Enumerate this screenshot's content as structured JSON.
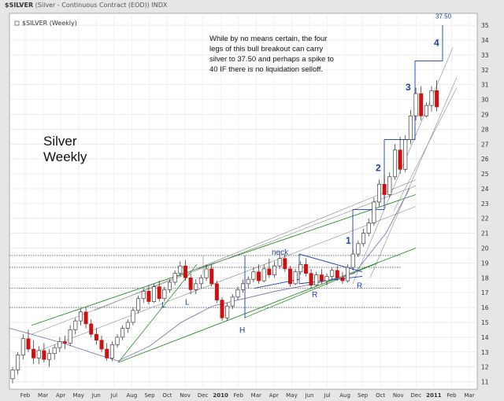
{
  "header": {
    "symbol": "$SILVER",
    "description": "(Silver - Continuous Contract (EOD))",
    "exchange": "INDX"
  },
  "legend": {
    "label": "$SILVER (Weekly)"
  },
  "chart_title": {
    "line1": "Silver",
    "line2": "Weekly"
  },
  "annotation_note": [
    "While by no means certain, the four",
    "legs of this bull breakout can carry",
    "silver to 37.50 and perhaps a spike to",
    "40 IF there is no liquidation selloff."
  ],
  "colors": {
    "up_candle": "#ffffff",
    "down_candle": "#cc1111",
    "green_channel": "#2a8a2a",
    "blue_annotation": "#1a3fb0",
    "grey_lines": "#888888"
  },
  "chart_data": {
    "type": "candlestick",
    "y_axis": {
      "ticks": [
        11,
        12,
        13,
        14,
        15,
        16,
        17,
        18,
        19,
        20,
        21,
        22,
        23,
        24,
        25,
        26,
        27,
        28,
        29,
        30,
        31,
        32,
        33,
        34,
        35
      ],
      "range": [
        10.5,
        35.8
      ],
      "position": "right"
    },
    "x_axis": {
      "labels": [
        "Feb",
        "Mar",
        "Apr",
        "May",
        "Jun",
        "Jul",
        "Aug",
        "Sep",
        "Oct",
        "Nov",
        "Dec",
        "2010",
        "Feb",
        "Mar",
        "Apr",
        "May",
        "Jun",
        "Jul",
        "Aug",
        "Sep",
        "Oct",
        "Nov",
        "Dec",
        "2011",
        "Feb",
        "Mar"
      ],
      "bold_labels": [
        "2010",
        "2011"
      ]
    },
    "annotations": {
      "neck": "neck",
      "L_markers": [
        "L",
        "L"
      ],
      "H_marker": "H",
      "R_markers": [
        "R",
        "R"
      ],
      "legs": [
        "1",
        "2",
        "3",
        "4"
      ],
      "target": "37.50"
    },
    "horizontal_levels": [
      19.5,
      18.7,
      17.3,
      16.0
    ],
    "candles": [
      {
        "o": 11.2,
        "h": 12.0,
        "l": 10.9,
        "c": 11.8
      },
      {
        "o": 11.8,
        "h": 13.0,
        "l": 11.5,
        "c": 12.8
      },
      {
        "o": 12.8,
        "h": 14.2,
        "l": 12.5,
        "c": 13.9
      },
      {
        "o": 13.9,
        "h": 14.5,
        "l": 13.0,
        "c": 13.2
      },
      {
        "o": 13.2,
        "h": 13.8,
        "l": 12.2,
        "c": 12.6
      },
      {
        "o": 12.6,
        "h": 13.4,
        "l": 12.2,
        "c": 13.1
      },
      {
        "o": 13.1,
        "h": 13.6,
        "l": 12.3,
        "c": 12.5
      },
      {
        "o": 12.5,
        "h": 13.2,
        "l": 12.0,
        "c": 12.9
      },
      {
        "o": 12.9,
        "h": 13.5,
        "l": 12.5,
        "c": 13.3
      },
      {
        "o": 13.3,
        "h": 14.0,
        "l": 13.0,
        "c": 13.7
      },
      {
        "o": 13.7,
        "h": 14.1,
        "l": 13.2,
        "c": 13.6
      },
      {
        "o": 13.6,
        "h": 14.8,
        "l": 13.4,
        "c": 14.5
      },
      {
        "o": 14.5,
        "h": 15.3,
        "l": 14.2,
        "c": 15.1
      },
      {
        "o": 15.1,
        "h": 15.9,
        "l": 14.8,
        "c": 15.7
      },
      {
        "o": 15.7,
        "h": 16.0,
        "l": 14.6,
        "c": 14.9
      },
      {
        "o": 14.9,
        "h": 15.2,
        "l": 14.0,
        "c": 14.2
      },
      {
        "o": 14.2,
        "h": 14.6,
        "l": 13.5,
        "c": 13.8
      },
      {
        "o": 13.8,
        "h": 14.1,
        "l": 13.0,
        "c": 13.2
      },
      {
        "o": 13.2,
        "h": 13.6,
        "l": 12.4,
        "c": 12.6
      },
      {
        "o": 12.6,
        "h": 13.7,
        "l": 12.4,
        "c": 13.5
      },
      {
        "o": 13.5,
        "h": 14.2,
        "l": 13.3,
        "c": 14.0
      },
      {
        "o": 14.0,
        "h": 14.8,
        "l": 13.8,
        "c": 14.6
      },
      {
        "o": 14.6,
        "h": 15.2,
        "l": 14.3,
        "c": 15.0
      },
      {
        "o": 15.0,
        "h": 16.0,
        "l": 14.8,
        "c": 15.8
      },
      {
        "o": 15.8,
        "h": 16.8,
        "l": 15.6,
        "c": 16.6
      },
      {
        "o": 16.6,
        "h": 17.3,
        "l": 16.3,
        "c": 17.1
      },
      {
        "o": 17.1,
        "h": 17.5,
        "l": 16.2,
        "c": 16.4
      },
      {
        "o": 16.4,
        "h": 17.6,
        "l": 16.3,
        "c": 17.4
      },
      {
        "o": 17.4,
        "h": 17.8,
        "l": 16.4,
        "c": 16.6
      },
      {
        "o": 16.6,
        "h": 17.4,
        "l": 16.4,
        "c": 17.2
      },
      {
        "o": 17.2,
        "h": 17.9,
        "l": 17.0,
        "c": 17.7
      },
      {
        "o": 17.7,
        "h": 18.5,
        "l": 17.5,
        "c": 18.3
      },
      {
        "o": 18.3,
        "h": 19.1,
        "l": 18.1,
        "c": 18.8
      },
      {
        "o": 18.8,
        "h": 19.2,
        "l": 17.8,
        "c": 18.0
      },
      {
        "o": 18.0,
        "h": 18.3,
        "l": 16.9,
        "c": 17.2
      },
      {
        "o": 17.2,
        "h": 17.9,
        "l": 16.9,
        "c": 17.6
      },
      {
        "o": 17.6,
        "h": 18.2,
        "l": 17.3,
        "c": 18.0
      },
      {
        "o": 18.0,
        "h": 18.9,
        "l": 17.8,
        "c": 18.6
      },
      {
        "o": 18.6,
        "h": 18.9,
        "l": 17.4,
        "c": 17.6
      },
      {
        "o": 17.6,
        "h": 17.8,
        "l": 16.3,
        "c": 16.5
      },
      {
        "o": 16.5,
        "h": 16.7,
        "l": 15.1,
        "c": 15.3
      },
      {
        "o": 15.3,
        "h": 16.3,
        "l": 15.1,
        "c": 16.1
      },
      {
        "o": 16.1,
        "h": 16.9,
        "l": 15.9,
        "c": 16.7
      },
      {
        "o": 16.7,
        "h": 17.4,
        "l": 16.5,
        "c": 17.2
      },
      {
        "o": 17.2,
        "h": 17.9,
        "l": 17.0,
        "c": 17.6
      },
      {
        "o": 17.6,
        "h": 18.1,
        "l": 17.3,
        "c": 17.9
      },
      {
        "o": 17.9,
        "h": 18.7,
        "l": 17.7,
        "c": 18.4
      },
      {
        "o": 18.4,
        "h": 18.9,
        "l": 17.6,
        "c": 17.8
      },
      {
        "o": 17.8,
        "h": 18.9,
        "l": 17.7,
        "c": 18.6
      },
      {
        "o": 18.6,
        "h": 19.3,
        "l": 18.0,
        "c": 18.2
      },
      {
        "o": 18.2,
        "h": 19.1,
        "l": 18.0,
        "c": 18.8
      },
      {
        "o": 18.8,
        "h": 19.8,
        "l": 18.6,
        "c": 19.3
      },
      {
        "o": 19.3,
        "h": 19.6,
        "l": 18.4,
        "c": 18.6
      },
      {
        "o": 18.6,
        "h": 18.8,
        "l": 17.4,
        "c": 17.6
      },
      {
        "o": 17.6,
        "h": 18.6,
        "l": 17.5,
        "c": 18.4
      },
      {
        "o": 18.4,
        "h": 19.1,
        "l": 18.2,
        "c": 18.9
      },
      {
        "o": 18.9,
        "h": 19.3,
        "l": 18.1,
        "c": 18.3
      },
      {
        "o": 18.3,
        "h": 18.6,
        "l": 17.3,
        "c": 17.5
      },
      {
        "o": 17.5,
        "h": 18.4,
        "l": 17.4,
        "c": 18.2
      },
      {
        "o": 18.2,
        "h": 18.6,
        "l": 17.6,
        "c": 17.8
      },
      {
        "o": 17.8,
        "h": 18.3,
        "l": 17.5,
        "c": 18.1
      },
      {
        "o": 18.1,
        "h": 18.7,
        "l": 17.9,
        "c": 18.5
      },
      {
        "o": 18.5,
        "h": 18.8,
        "l": 17.8,
        "c": 18.0
      },
      {
        "o": 18.0,
        "h": 18.4,
        "l": 17.6,
        "c": 17.8
      },
      {
        "o": 17.8,
        "h": 18.9,
        "l": 17.7,
        "c": 18.7
      },
      {
        "o": 18.7,
        "h": 19.9,
        "l": 18.5,
        "c": 19.6
      },
      {
        "o": 19.6,
        "h": 20.5,
        "l": 19.4,
        "c": 20.3
      },
      {
        "o": 20.3,
        "h": 21.3,
        "l": 20.1,
        "c": 21.0
      },
      {
        "o": 21.0,
        "h": 22.0,
        "l": 20.8,
        "c": 21.7
      },
      {
        "o": 21.7,
        "h": 23.4,
        "l": 21.5,
        "c": 23.1
      },
      {
        "o": 23.1,
        "h": 24.6,
        "l": 22.8,
        "c": 24.3
      },
      {
        "o": 24.3,
        "h": 24.9,
        "l": 23.3,
        "c": 23.6
      },
      {
        "o": 23.6,
        "h": 25.1,
        "l": 23.4,
        "c": 24.8
      },
      {
        "o": 24.8,
        "h": 27.0,
        "l": 24.6,
        "c": 26.6
      },
      {
        "o": 26.6,
        "h": 27.5,
        "l": 25.0,
        "c": 25.3
      },
      {
        "o": 25.3,
        "h": 27.6,
        "l": 25.1,
        "c": 27.3
      },
      {
        "o": 27.3,
        "h": 29.3,
        "l": 27.0,
        "c": 28.9
      },
      {
        "o": 28.9,
        "h": 30.8,
        "l": 28.6,
        "c": 30.4
      },
      {
        "o": 30.4,
        "h": 30.9,
        "l": 28.6,
        "c": 28.9
      },
      {
        "o": 28.9,
        "h": 29.8,
        "l": 28.8,
        "c": 29.6
      },
      {
        "o": 29.6,
        "h": 30.9,
        "l": 29.2,
        "c": 30.6
      },
      {
        "o": 30.6,
        "h": 31.3,
        "l": 29.2,
        "c": 29.5
      }
    ]
  }
}
